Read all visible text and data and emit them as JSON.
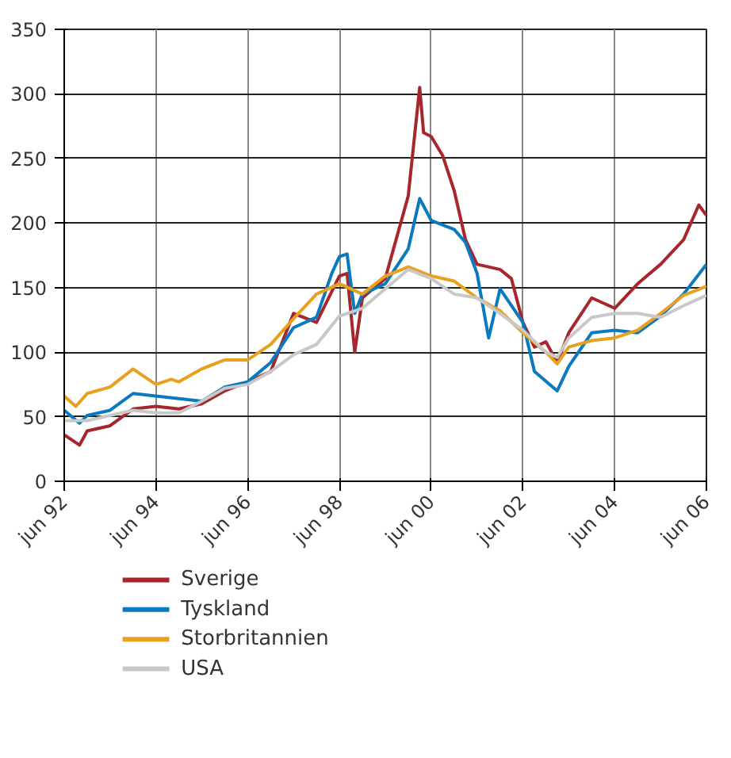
{
  "chart_data": {
    "type": "line",
    "xlim": [
      "1992-06",
      "2006-06"
    ],
    "ylim": [
      0,
      350
    ],
    "yticks": [
      0,
      50,
      100,
      150,
      200,
      250,
      300,
      350
    ],
    "xticks": [
      {
        "value": "1992-06",
        "label": "jun 92"
      },
      {
        "value": "1994-06",
        "label": "jun 94"
      },
      {
        "value": "1996-06",
        "label": "jun 96"
      },
      {
        "value": "1998-06",
        "label": "jun 98"
      },
      {
        "value": "2000-06",
        "label": "jun 00"
      },
      {
        "value": "2002-06",
        "label": "jun 02"
      },
      {
        "value": "2004-06",
        "label": "jun 04"
      },
      {
        "value": "2006-06",
        "label": "jun 06"
      }
    ],
    "grid": true,
    "legend": "bottom",
    "line_style": "solid",
    "series": [
      {
        "name": "Sverige",
        "color": "#a6262c",
        "x": [
          "1992-06",
          "1992-10",
          "1992-12",
          "1993-06",
          "1993-12",
          "1994-06",
          "1994-12",
          "1995-06",
          "1995-12",
          "1996-06",
          "1996-12",
          "1997-06",
          "1997-12",
          "1998-06",
          "1998-08",
          "1998-10",
          "1998-12",
          "1999-06",
          "1999-12",
          "2000-03",
          "2000-04",
          "2000-06",
          "2000-09",
          "2000-12",
          "2001-03",
          "2001-06",
          "2001-12",
          "2002-03",
          "2002-06",
          "2002-09",
          "2002-12",
          "2003-03",
          "2003-06",
          "2003-12",
          "2004-06",
          "2004-12",
          "2005-06",
          "2005-12",
          "2006-04",
          "2006-06"
        ],
        "values": [
          36,
          28,
          39,
          43,
          56,
          58,
          56,
          60,
          70,
          77,
          85,
          130,
          123,
          159,
          161,
          100,
          142,
          157,
          221,
          305,
          270,
          267,
          252,
          225,
          187,
          168,
          164,
          157,
          123,
          104,
          108,
          92,
          115,
          142,
          134,
          153,
          168,
          187,
          214,
          206
        ]
      },
      {
        "name": "Tyskland",
        "color": "#0a7ac0",
        "x": [
          "1992-06",
          "1992-10",
          "1992-12",
          "1993-06",
          "1993-12",
          "1994-06",
          "1994-12",
          "1995-06",
          "1995-12",
          "1996-06",
          "1996-12",
          "1997-06",
          "1997-12",
          "1998-04",
          "1998-06",
          "1998-08",
          "1998-10",
          "1998-12",
          "1999-06",
          "1999-12",
          "2000-03",
          "2000-06",
          "2000-12",
          "2001-03",
          "2001-06",
          "2001-09",
          "2001-12",
          "2002-06",
          "2002-09",
          "2003-03",
          "2003-06",
          "2003-12",
          "2004-06",
          "2004-12",
          "2005-06",
          "2005-12",
          "2006-06"
        ],
        "values": [
          55,
          45,
          51,
          55,
          68,
          66,
          64,
          62,
          73,
          77,
          92,
          119,
          127,
          161,
          174,
          176,
          130,
          145,
          153,
          180,
          219,
          202,
          195,
          185,
          161,
          111,
          149,
          123,
          85,
          70,
          89,
          115,
          117,
          115,
          128,
          145,
          168
        ]
      },
      {
        "name": "Storbritannien",
        "color": "#e8a020",
        "x": [
          "1992-06",
          "1992-09",
          "1992-12",
          "1993-06",
          "1993-12",
          "1994-06",
          "1994-10",
          "1994-12",
          "1995-06",
          "1995-12",
          "1996-06",
          "1996-12",
          "1997-06",
          "1997-12",
          "1998-06",
          "1998-12",
          "1999-06",
          "1999-12",
          "2000-06",
          "2000-12",
          "2001-06",
          "2001-12",
          "2002-06",
          "2002-12",
          "2003-03",
          "2003-06",
          "2003-12",
          "2004-06",
          "2004-12",
          "2005-06",
          "2005-12",
          "2006-06"
        ],
        "values": [
          66,
          58,
          68,
          73,
          87,
          75,
          79,
          77,
          87,
          94,
          94,
          106,
          126,
          145,
          153,
          145,
          159,
          166,
          159,
          155,
          142,
          132,
          115,
          100,
          91,
          104,
          109,
          111,
          117,
          130,
          144,
          151
        ]
      },
      {
        "name": "USA",
        "color": "#c8c8c8",
        "x": [
          "1992-06",
          "1992-12",
          "1993-06",
          "1993-12",
          "1994-06",
          "1994-12",
          "1995-06",
          "1995-12",
          "1996-06",
          "1996-12",
          "1997-06",
          "1997-12",
          "1998-06",
          "1998-12",
          "1999-06",
          "1999-12",
          "2000-06",
          "2000-12",
          "2001-06",
          "2001-12",
          "2002-06",
          "2002-12",
          "2003-03",
          "2003-06",
          "2003-12",
          "2004-06",
          "2004-12",
          "2005-06",
          "2005-12",
          "2006-06"
        ],
        "values": [
          47,
          47,
          51,
          55,
          53,
          53,
          62,
          72,
          75,
          85,
          98,
          106,
          128,
          134,
          149,
          164,
          157,
          145,
          142,
          130,
          117,
          100,
          96,
          111,
          127,
          130,
          130,
          127,
          136,
          144
        ]
      }
    ]
  }
}
